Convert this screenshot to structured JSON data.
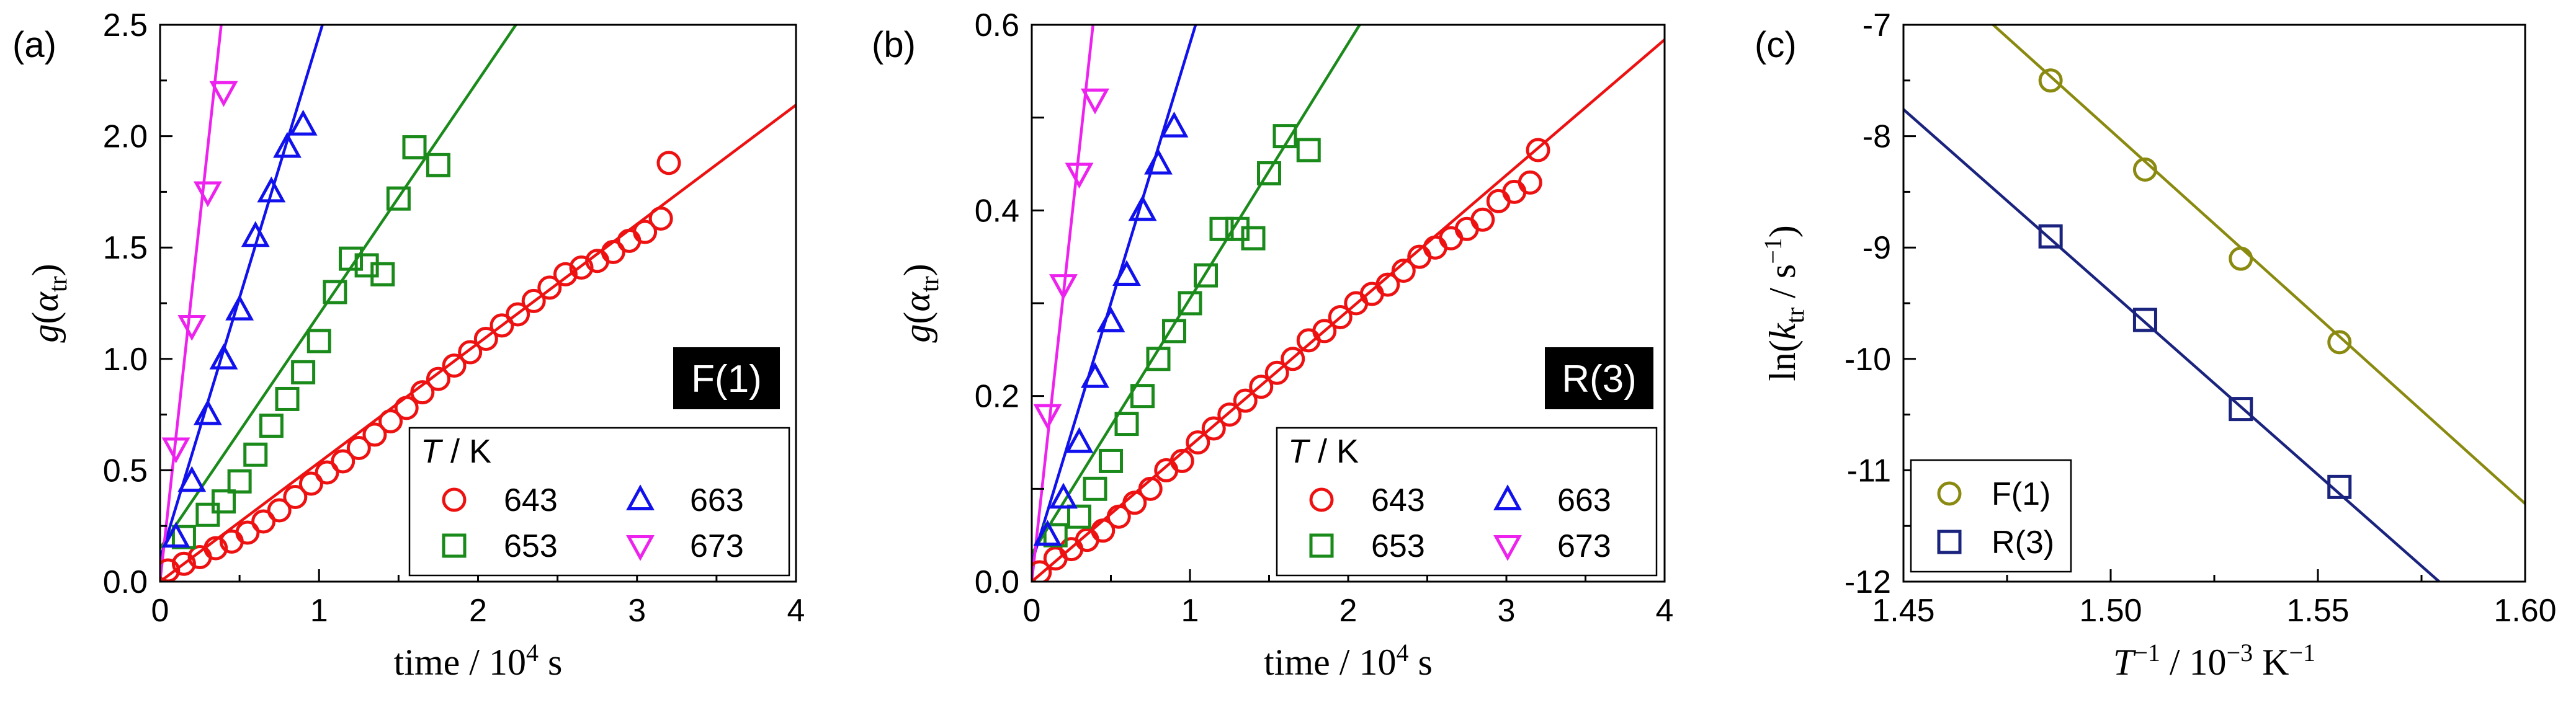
{
  "chart_data": [
    {
      "panel": "(a)",
      "type": "scatter",
      "model_label": "F(1)",
      "xlabel": "time / 10⁴ s",
      "ylabel": "g(αtr)",
      "ylabel_main": "g(",
      "ylabel_alpha": "α",
      "ylabel_sub": "tr",
      "ylabel_close": ")",
      "xlim": [
        0,
        4
      ],
      "ylim": [
        0,
        2.5
      ],
      "xticks": [
        "0",
        "1",
        "2",
        "3",
        "4"
      ],
      "yticks": [
        "0.0",
        "0.5",
        "1.0",
        "1.5",
        "2.0",
        "2.5"
      ],
      "legend_title": "T / K",
      "series": [
        {
          "name": "643",
          "marker": "circle",
          "color": "#ee1111",
          "slope": 0.535,
          "intercept": 0.0,
          "x": [
            0.05,
            0.15,
            0.25,
            0.35,
            0.45,
            0.55,
            0.65,
            0.75,
            0.85,
            0.95,
            1.05,
            1.15,
            1.25,
            1.35,
            1.45,
            1.55,
            1.65,
            1.75,
            1.85,
            1.95,
            2.05,
            2.15,
            2.25,
            2.35,
            2.45,
            2.55,
            2.65,
            2.75,
            2.85,
            2.95,
            3.05,
            3.15,
            3.2
          ],
          "y": [
            0.05,
            0.08,
            0.11,
            0.15,
            0.18,
            0.22,
            0.27,
            0.32,
            0.38,
            0.44,
            0.49,
            0.54,
            0.6,
            0.66,
            0.72,
            0.78,
            0.85,
            0.91,
            0.97,
            1.03,
            1.09,
            1.15,
            1.2,
            1.26,
            1.32,
            1.38,
            1.41,
            1.44,
            1.48,
            1.53,
            1.57,
            1.63,
            1.88
          ]
        },
        {
          "name": "653",
          "marker": "square",
          "color": "#1a8a1a",
          "slope": 1.05,
          "intercept": 0.15,
          "x": [
            0.15,
            0.3,
            0.4,
            0.5,
            0.6,
            0.7,
            0.8,
            0.9,
            1.0,
            1.1,
            1.2,
            1.3,
            1.4,
            1.5,
            1.6,
            1.75
          ],
          "y": [
            0.2,
            0.3,
            0.36,
            0.45,
            0.57,
            0.7,
            0.82,
            0.94,
            1.08,
            1.3,
            1.45,
            1.42,
            1.38,
            1.72,
            1.95,
            1.87
          ]
        },
        {
          "name": "663",
          "marker": "triangle-up",
          "color": "#1111ee",
          "slope": 2.35,
          "intercept": 0.1,
          "x": [
            0.1,
            0.2,
            0.3,
            0.4,
            0.5,
            0.6,
            0.7,
            0.8,
            0.9
          ],
          "y": [
            0.2,
            0.45,
            0.75,
            1.0,
            1.22,
            1.55,
            1.75,
            1.95,
            2.05
          ]
        },
        {
          "name": "673",
          "marker": "triangle-down",
          "color": "#ee22ee",
          "slope": 6.5,
          "intercept": 0.0,
          "x": [
            0.1,
            0.2,
            0.3,
            0.4
          ],
          "y": [
            0.6,
            1.15,
            1.75,
            2.2
          ]
        }
      ]
    },
    {
      "panel": "(b)",
      "type": "scatter",
      "model_label": "R(3)",
      "xlabel": "time / 10⁴ s",
      "ylabel": "g(αtr)",
      "ylabel_main": "g(",
      "ylabel_alpha": "α",
      "ylabel_sub": "tr",
      "ylabel_close": ")",
      "xlim": [
        0,
        4
      ],
      "ylim": [
        0,
        0.6
      ],
      "xticks": [
        "0",
        "1",
        "2",
        "3",
        "4"
      ],
      "yticks": [
        "0.0",
        "",
        "0.2",
        "",
        "0.4",
        "",
        "0.6"
      ],
      "legend_title": "T / K",
      "series": [
        {
          "name": "643",
          "marker": "circle",
          "color": "#ee1111",
          "slope": 0.146,
          "intercept": 0.0,
          "x": [
            0.05,
            0.15,
            0.25,
            0.35,
            0.45,
            0.55,
            0.65,
            0.75,
            0.85,
            0.95,
            1.05,
            1.15,
            1.25,
            1.35,
            1.45,
            1.55,
            1.65,
            1.75,
            1.85,
            1.95,
            2.05,
            2.15,
            2.25,
            2.35,
            2.45,
            2.55,
            2.65,
            2.75,
            2.85,
            2.95,
            3.05,
            3.15,
            3.2
          ],
          "y": [
            0.01,
            0.025,
            0.035,
            0.045,
            0.055,
            0.07,
            0.085,
            0.1,
            0.12,
            0.13,
            0.15,
            0.165,
            0.18,
            0.195,
            0.21,
            0.225,
            0.24,
            0.26,
            0.27,
            0.285,
            0.3,
            0.31,
            0.32,
            0.335,
            0.35,
            0.36,
            0.37,
            0.38,
            0.39,
            0.41,
            0.42,
            0.43,
            0.465
          ]
        },
        {
          "name": "653",
          "marker": "square",
          "color": "#1a8a1a",
          "slope": 0.275,
          "intercept": 0.03,
          "x": [
            0.15,
            0.3,
            0.4,
            0.5,
            0.6,
            0.7,
            0.8,
            0.9,
            1.0,
            1.1,
            1.2,
            1.3,
            1.4,
            1.5,
            1.6,
            1.75
          ],
          "y": [
            0.05,
            0.07,
            0.1,
            0.13,
            0.17,
            0.2,
            0.24,
            0.27,
            0.3,
            0.33,
            0.38,
            0.38,
            0.37,
            0.44,
            0.48,
            0.465
          ]
        },
        {
          "name": "663",
          "marker": "triangle-up",
          "color": "#1111ee",
          "slope": 0.56,
          "intercept": 0.02,
          "x": [
            0.1,
            0.2,
            0.3,
            0.4,
            0.5,
            0.6,
            0.7,
            0.8,
            0.9
          ],
          "y": [
            0.05,
            0.09,
            0.15,
            0.22,
            0.28,
            0.33,
            0.4,
            0.45,
            0.49
          ]
        },
        {
          "name": "673",
          "marker": "triangle-down",
          "color": "#ee22ee",
          "slope": 1.55,
          "intercept": 0.0,
          "x": [
            0.1,
            0.2,
            0.3,
            0.4
          ],
          "y": [
            0.18,
            0.32,
            0.44,
            0.52
          ]
        }
      ]
    },
    {
      "panel": "(c)",
      "type": "scatter",
      "xlabel": "T⁻¹ / 10⁻³ K⁻¹",
      "ylabel": "ln(ktr / s⁻¹)",
      "xlim": [
        1.45,
        1.6
      ],
      "ylim": [
        -12,
        -7
      ],
      "xticks": [
        "1.45",
        "1.50",
        "1.55",
        "1.60"
      ],
      "yticks": [
        "-12",
        "-11",
        "-10",
        "-9",
        "-8",
        "-7"
      ],
      "series": [
        {
          "name": "F(1)",
          "marker": "circle",
          "color": "#8a8a10",
          "slope": -33.5,
          "intercept": 42.3,
          "x": [
            1.4855,
            1.5083,
            1.5314,
            1.5552
          ],
          "y": [
            -7.5,
            -8.3,
            -9.1,
            -9.85
          ]
        },
        {
          "name": "R(3)",
          "marker": "square",
          "color": "#1a237e",
          "slope": -32.8,
          "intercept": 39.8,
          "x": [
            1.4855,
            1.5083,
            1.5314,
            1.5552
          ],
          "y": [
            -8.9,
            -9.65,
            -10.45,
            -11.15
          ]
        }
      ]
    }
  ]
}
